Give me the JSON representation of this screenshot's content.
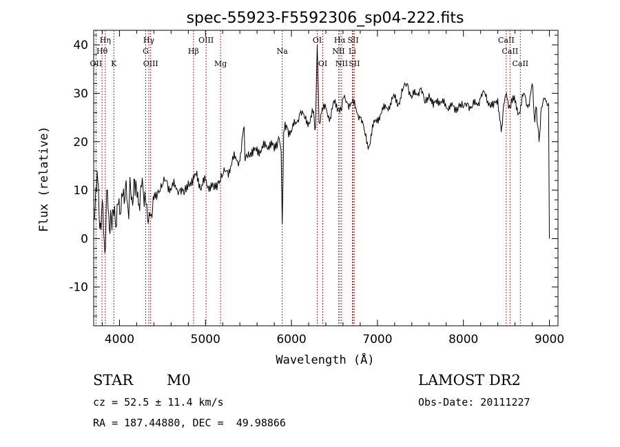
{
  "chart_data": {
    "type": "line",
    "title": "spec-55923-F5592306_sp04-222.fits",
    "xlabel": "Wavelength (Å)",
    "ylabel": "Flux (relative)",
    "xlim": [
      3700,
      9100
    ],
    "ylim": [
      -18,
      43
    ],
    "xticks": [
      4000,
      5000,
      6000,
      7000,
      8000,
      9000
    ],
    "yticks": [
      -10,
      0,
      10,
      20,
      30,
      40
    ],
    "line_color": "#000000",
    "marker_color": "#b22222",
    "series": [
      {
        "values_x": [
          3710,
          3740,
          3770,
          3800,
          3830,
          3860,
          3890,
          3920,
          3950,
          3980,
          4010,
          4040,
          4070,
          4100,
          4130,
          4160,
          4190,
          4220,
          4250,
          4280,
          4310,
          4340,
          4370,
          4400,
          4450,
          4500,
          4550,
          4600,
          4650,
          4700,
          4750,
          4800,
          4850,
          4900,
          4950,
          5000,
          5050,
          5100,
          5150,
          5200,
          5250,
          5300,
          5350,
          5400,
          5450,
          5460,
          5500,
          5550,
          5600,
          5650,
          5700,
          5750,
          5800,
          5850,
          5880,
          5893,
          5910,
          5950,
          6000,
          6050,
          6100,
          6150,
          6200,
          6250,
          6280,
          6300,
          6320,
          6350,
          6400,
          6450,
          6500,
          6550,
          6563,
          6600,
          6650,
          6700,
          6750,
          6800,
          6850,
          6900,
          6950,
          7000,
          7050,
          7100,
          7150,
          7200,
          7250,
          7300,
          7350,
          7400,
          7450,
          7500,
          7550,
          7600,
          7650,
          7700,
          7750,
          7800,
          7850,
          7900,
          7950,
          8000,
          8050,
          8100,
          8150,
          8200,
          8250,
          8300,
          8350,
          8400,
          8440,
          8460,
          8500,
          8542,
          8560,
          8600,
          8650,
          8700,
          8750,
          8800,
          8830,
          8850,
          8880,
          8900,
          8950,
          8990,
          9000
        ],
        "values_y": [
          4,
          14,
          2,
          8,
          -3,
          10,
          1,
          6,
          4,
          7,
          5,
          9,
          11,
          6,
          10,
          8,
          12,
          7,
          11,
          9,
          7,
          4,
          5,
          8,
          10,
          11,
          12,
          10,
          11,
          10,
          9,
          12,
          11,
          14,
          10,
          12,
          11,
          10,
          12,
          13,
          14,
          15,
          17,
          16,
          23,
          16,
          18,
          17,
          19,
          18,
          19,
          20,
          18,
          21,
          18,
          3,
          22,
          23,
          22,
          24,
          26,
          25,
          24,
          26,
          23,
          40,
          24,
          26,
          27,
          25,
          28,
          27,
          26,
          29,
          28,
          28,
          27,
          25,
          22,
          19,
          23,
          25,
          26,
          27,
          28,
          29,
          28,
          31,
          32,
          29,
          30,
          31,
          28,
          30,
          27,
          29,
          28,
          27,
          28,
          26,
          28,
          27,
          28,
          27,
          28,
          29,
          30,
          28,
          27,
          29,
          22,
          26,
          30,
          27,
          29,
          28,
          26,
          30,
          27,
          32,
          24,
          27,
          20,
          26,
          29,
          28,
          0
        ]
      }
    ],
    "line_markers": [
      {
        "name": "Hη",
        "wavelength": 3835,
        "row": 1
      },
      {
        "name": "Hθ",
        "wavelength": 3797,
        "row": 2
      },
      {
        "name": "OII",
        "wavelength": 3727,
        "row": 3
      },
      {
        "name": "K",
        "wavelength": 3934,
        "row": 3
      },
      {
        "name": "Hγ",
        "wavelength": 4341,
        "row": 1
      },
      {
        "name": "G",
        "wavelength": 4305,
        "row": 2
      },
      {
        "name": "OIII",
        "wavelength": 4363,
        "row": 3
      },
      {
        "name": "OIII",
        "wavelength": 5007,
        "row": 1
      },
      {
        "name": "Hβ",
        "wavelength": 4861,
        "row": 2
      },
      {
        "name": "Mg",
        "wavelength": 5175,
        "row": 3
      },
      {
        "name": "Na",
        "wavelength": 5893,
        "row": 2
      },
      {
        "name": "OI",
        "wavelength": 6300,
        "row": 1
      },
      {
        "name": "OI",
        "wavelength": 6364,
        "row": 3
      },
      {
        "name": "Hα",
        "wavelength": 6563,
        "row": 1
      },
      {
        "name": "NII",
        "wavelength": 6548,
        "row": 2
      },
      {
        "name": "NII",
        "wavelength": 6584,
        "row": 3
      },
      {
        "name": "SII",
        "wavelength": 6717,
        "row": 1
      },
      {
        "name": "Li",
        "wavelength": 6708,
        "row": 2
      },
      {
        "name": "SII",
        "wavelength": 6731,
        "row": 3
      },
      {
        "name": "CaII",
        "wavelength": 8498,
        "row": 1
      },
      {
        "name": "CaII",
        "wavelength": 8542,
        "row": 2
      },
      {
        "name": "CaII",
        "wavelength": 8662,
        "row": 3
      }
    ]
  },
  "info": {
    "class": "STAR",
    "subclass": "M0",
    "survey": "LAMOST DR2",
    "cz": "cz = 52.5 ± 11.4 km/s",
    "coords": "RA = 187.44880, DEC =  49.98866",
    "obs_date": "Obs-Date: 20111227"
  }
}
